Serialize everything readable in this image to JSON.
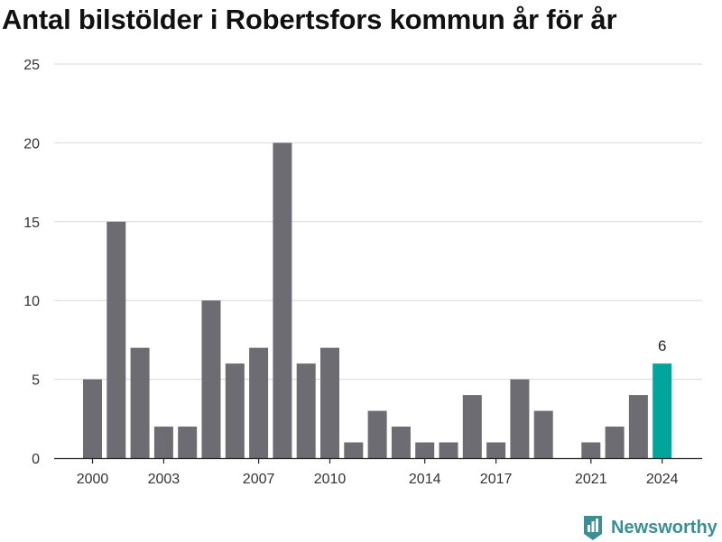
{
  "chart_data": {
    "type": "bar",
    "title": "Antal bilstölder i Robertsfors kommun år för år",
    "categories": [
      "2000",
      "2001",
      "2002",
      "2003",
      "2004",
      "2005",
      "2006",
      "2007",
      "2008",
      "2009",
      "2010",
      "2011",
      "2012",
      "2013",
      "2014",
      "2015",
      "2016",
      "2017",
      "2018",
      "2019",
      "2020",
      "2021",
      "2022",
      "2023",
      "2024"
    ],
    "values": [
      5,
      15,
      7,
      2,
      2,
      10,
      6,
      7,
      20,
      6,
      7,
      1,
      3,
      2,
      1,
      1,
      4,
      1,
      5,
      3,
      0,
      1,
      2,
      4,
      6
    ],
    "x_tick_labels": [
      "2000",
      "2003",
      "2007",
      "2010",
      "2014",
      "2017",
      "2021",
      "2024"
    ],
    "y_ticks": [
      0,
      5,
      10,
      15,
      20,
      25
    ],
    "ylim": [
      0,
      25
    ],
    "highlight_category": "2024",
    "highlight_value_label": "6",
    "xlabel": "",
    "ylabel": "",
    "grid": true,
    "colors": {
      "bar": "#6d6c72",
      "highlight": "#00a69c",
      "grid": "#d9d9d9",
      "axis": "#222222"
    }
  },
  "brand": {
    "name": "Newsworthy",
    "icon": "newsworthy-logo-icon",
    "color": "#3a8f93"
  }
}
